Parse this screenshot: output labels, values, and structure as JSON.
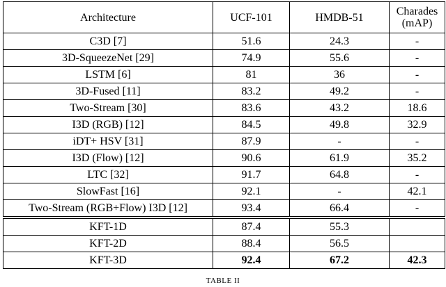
{
  "table": {
    "header": [
      "Architecture",
      "UCF-101",
      "HMDB-51",
      "Charades (mAP)"
    ],
    "rows": [
      [
        "C3D [7]",
        "51.6",
        "24.3",
        "-"
      ],
      [
        "3D-SqueezeNet [29]",
        "74.9",
        "55.6",
        "-"
      ],
      [
        "LSTM [6]",
        "81",
        "36",
        "-"
      ],
      [
        "3D-Fused [11]",
        "83.2",
        "49.2",
        "-"
      ],
      [
        "Two-Stream [30]",
        "83.6",
        "43.2",
        "18.6"
      ],
      [
        "I3D (RGB) [12]",
        "84.5",
        "49.8",
        "32.9"
      ],
      [
        "iDT+ HSV [31]",
        "87.9",
        "-",
        "-"
      ],
      [
        "I3D (Flow) [12]",
        "90.6",
        "61.9",
        "35.2"
      ],
      [
        "LTC [32]",
        "91.7",
        "64.8",
        "-"
      ],
      [
        "SlowFast [16]",
        "92.1",
        "-",
        "42.1"
      ],
      [
        "Two-Stream (RGB+Flow) I3D [12]",
        "93.4",
        "66.4",
        "-"
      ]
    ],
    "bottom_rows": [
      [
        "KFT-1D",
        "87.4",
        "55.3",
        ""
      ],
      [
        "KFT-2D",
        "88.4",
        "56.5",
        ""
      ],
      [
        "KFT-3D",
        "92.4",
        "67.2",
        "42.3"
      ]
    ]
  },
  "caption": "TABLE II"
}
